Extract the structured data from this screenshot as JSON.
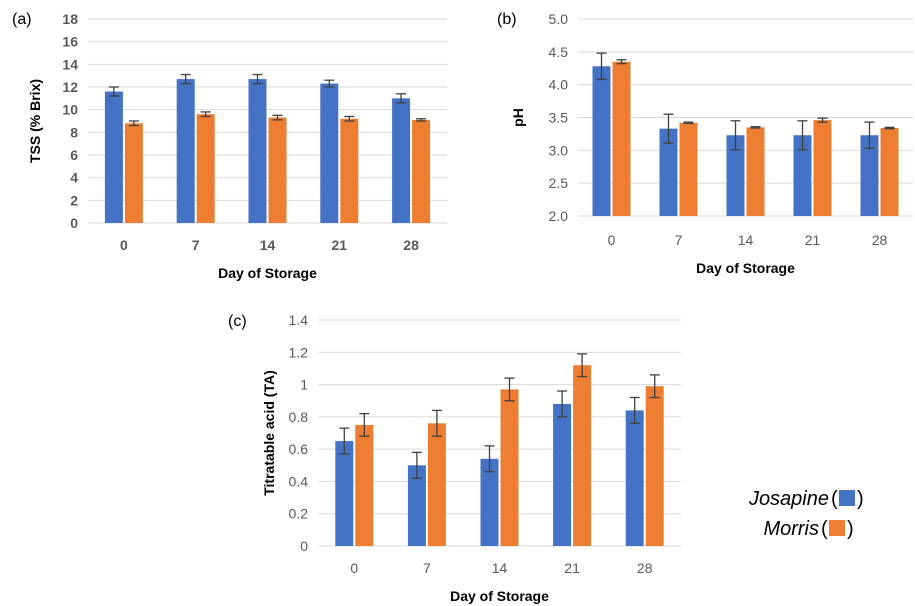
{
  "colors": {
    "josapine": "#4472C4",
    "morris": "#ED7D31",
    "grid": "#D9D9D9",
    "error": "#404040"
  },
  "legend": [
    {
      "name": "Josapine",
      "color": "#4472C4"
    },
    {
      "name": "Morris",
      "color": "#ED7D31"
    }
  ],
  "chart_data": [
    {
      "panel": "(a)",
      "type": "bar",
      "categories": [
        "0",
        "7",
        "14",
        "21",
        "28"
      ],
      "series": [
        {
          "name": "Josapine",
          "values": [
            11.6,
            12.7,
            12.7,
            12.3,
            11.0
          ],
          "errors": [
            0.4,
            0.4,
            0.4,
            0.3,
            0.4
          ]
        },
        {
          "name": "Morris",
          "values": [
            8.8,
            9.6,
            9.3,
            9.2,
            9.1
          ],
          "errors": [
            0.2,
            0.2,
            0.2,
            0.2,
            0.1
          ]
        }
      ],
      "xlabel": "Day of Storage",
      "ylabel": "TSS (% Brix)",
      "ylim": [
        0,
        18
      ],
      "yticks": [
        "0",
        "2",
        "4",
        "6",
        "8",
        "10",
        "12",
        "14",
        "16",
        "18"
      ],
      "grid": true
    },
    {
      "panel": "(b)",
      "type": "bar",
      "categories": [
        "0",
        "7",
        "14",
        "21",
        "28"
      ],
      "series": [
        {
          "name": "Josapine",
          "values": [
            4.28,
            3.33,
            3.23,
            3.23,
            3.23
          ],
          "errors": [
            0.2,
            0.22,
            0.22,
            0.22,
            0.2
          ]
        },
        {
          "name": "Morris",
          "values": [
            4.35,
            3.42,
            3.35,
            3.46,
            3.34
          ],
          "errors": [
            0.03,
            0.01,
            0.01,
            0.03,
            0.01
          ]
        }
      ],
      "xlabel": "Day of Storage",
      "ylabel": "pH",
      "ylim": [
        2.0,
        5.0
      ],
      "yticks": [
        "2.0",
        "2.5",
        "3.0",
        "3.5",
        "4.0",
        "4.5",
        "5.0"
      ],
      "grid": true
    },
    {
      "panel": "(c)",
      "type": "bar",
      "categories": [
        "0",
        "7",
        "14",
        "21",
        "28"
      ],
      "series": [
        {
          "name": "Josapine",
          "values": [
            0.65,
            0.5,
            0.54,
            0.88,
            0.84
          ],
          "errors": [
            0.08,
            0.08,
            0.08,
            0.08,
            0.08
          ]
        },
        {
          "name": "Morris",
          "values": [
            0.75,
            0.76,
            0.97,
            1.12,
            0.99
          ],
          "errors": [
            0.07,
            0.08,
            0.07,
            0.07,
            0.07
          ]
        }
      ],
      "xlabel": "Day of Storage",
      "ylabel": "Titratable acid (TA)",
      "ylim": [
        0,
        1.4
      ],
      "yticks": [
        "0",
        "0.2",
        "0.4",
        "0.6",
        "0.8",
        "1",
        "1.2",
        "1.4"
      ],
      "grid": true
    }
  ]
}
